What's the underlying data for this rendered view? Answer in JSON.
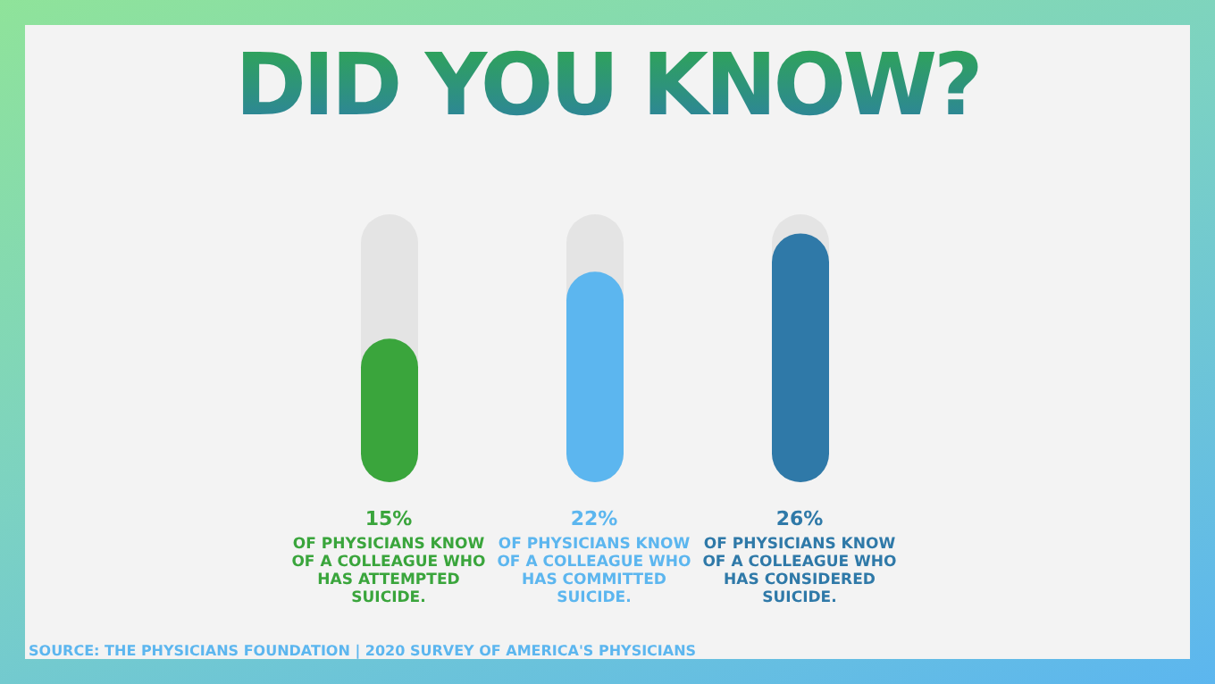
{
  "chart_data": {
    "type": "bar",
    "title": "DID YOU KNOW?",
    "categories": [
      "OF PHYSICIANS KNOW OF A COLLEAGUE WHO HAS ATTEMPTED SUICIDE.",
      "OF PHYSICIANS KNOW OF A COLLEAGUE WHO HAS COMMITTED SUICIDE.",
      "OF PHYSICIANS KNOW OF A COLLEAGUE WHO HAS CONSIDERED SUICIDE."
    ],
    "values": [
      15,
      22,
      26
    ],
    "colors": [
      "#3aa53c",
      "#5cb6ef",
      "#2f79a8"
    ],
    "value_labels": [
      "15%",
      "22%",
      "26%"
    ],
    "annotations": [
      "SOURCE: THE PHYSICIANS FOUNDATION | 2020 SURVEY OF AMERICA'S PHYSICIANS"
    ]
  }
}
